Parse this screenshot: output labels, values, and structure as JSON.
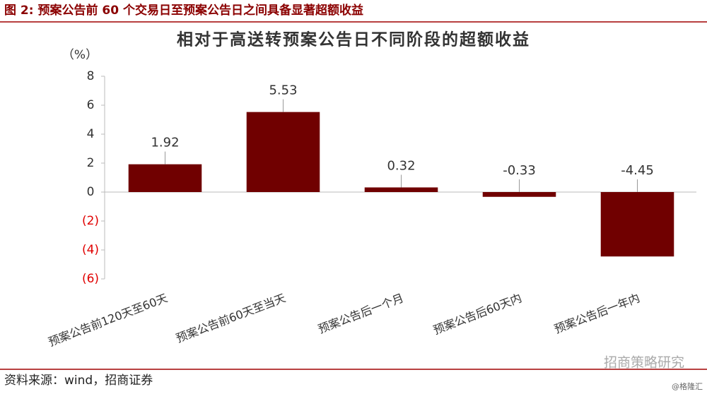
{
  "header": {
    "title": "图 2:  预案公告前 60 个交易日至预案公告日之间具备显著超额收益"
  },
  "chart_data": {
    "type": "bar",
    "title": "相对于高送转预案公告日不同阶段的超额收益",
    "y_unit": "（%）",
    "categories": [
      "预案公告前120天至60天",
      "预案公告前60天至当天",
      "预案公告后一个月",
      "预案公告后60天内",
      "预案公告后一年内"
    ],
    "values": [
      1.92,
      5.53,
      0.32,
      -0.33,
      -4.45
    ],
    "color": "#700000",
    "ylim": [
      -6,
      8
    ],
    "yticks": [
      {
        "value": -6,
        "label": "(6)"
      },
      {
        "value": -4,
        "label": "(4)"
      },
      {
        "value": -2,
        "label": "(2)"
      },
      0,
      2,
      4,
      6,
      8
    ],
    "grid": false
  },
  "source": "资料来源：wind，招商证券",
  "watermark": "招商策略研究",
  "credit": "@格隆汇"
}
